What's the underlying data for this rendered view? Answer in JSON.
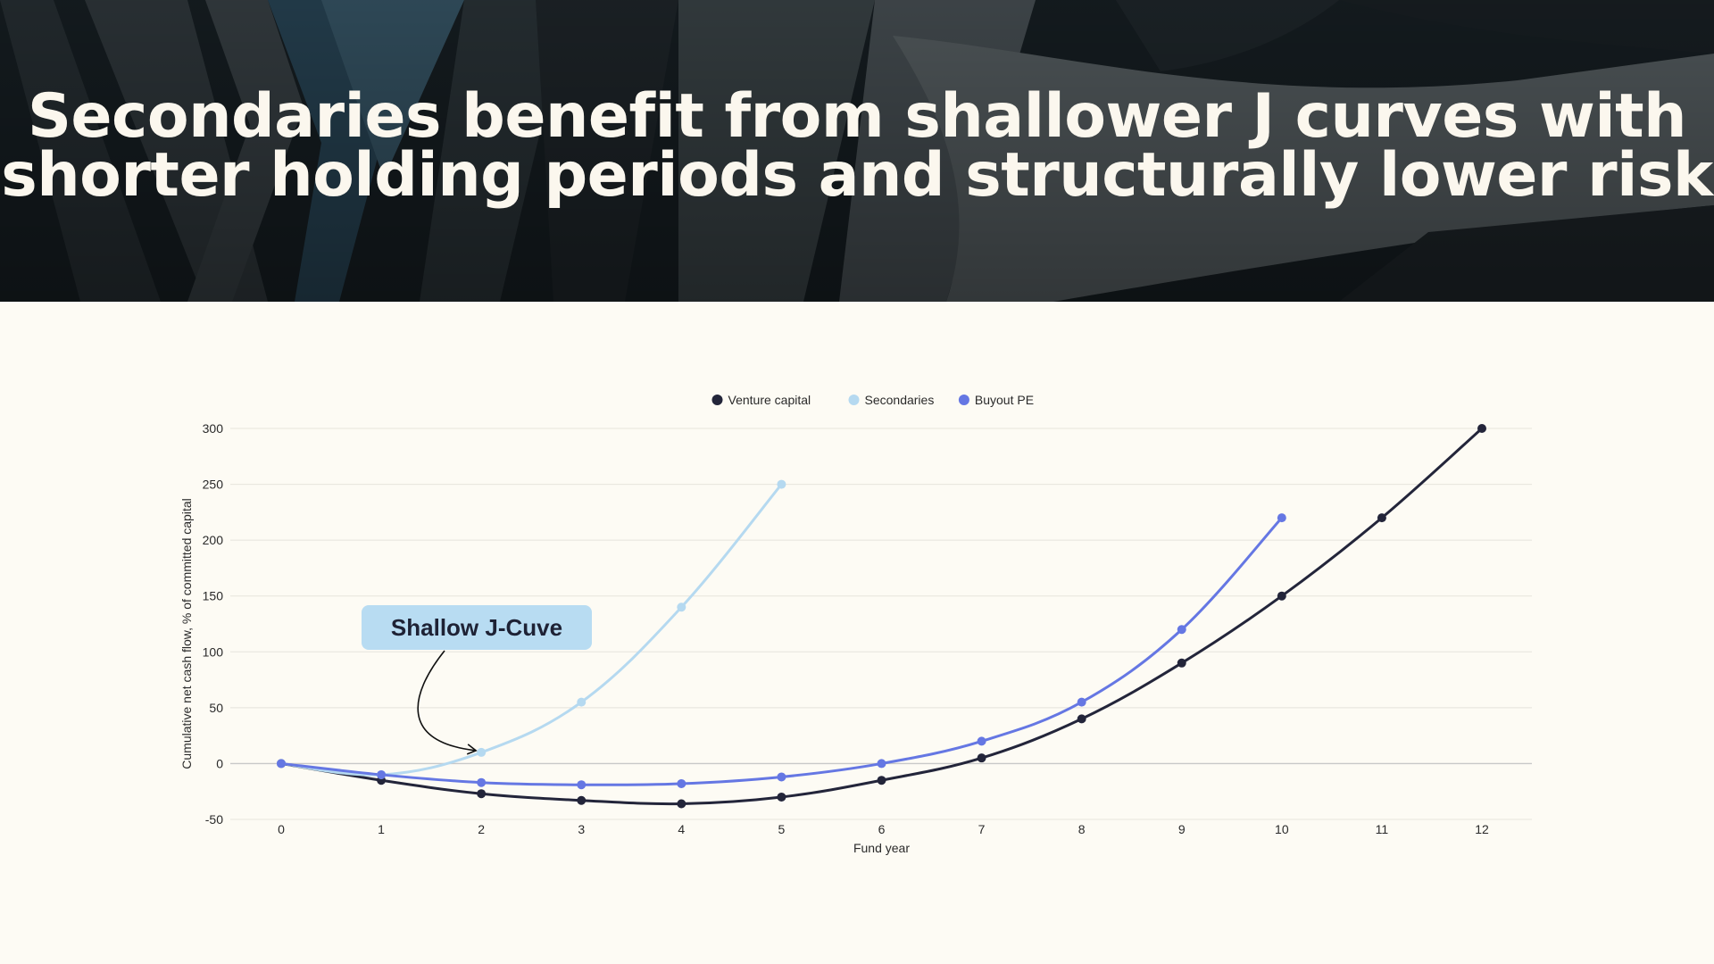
{
  "header": {
    "title_line1": "Secondaries benefit from shallower J curves with",
    "title_line2": "shorter holding periods and structurally lower risk"
  },
  "chart_data": {
    "type": "line",
    "xlabel": "Fund year",
    "ylabel": "Cumulative net cash flow, % of committed capital",
    "xlim": [
      0,
      12
    ],
    "ylim": [
      -50,
      300
    ],
    "x_ticks": [
      0,
      1,
      2,
      3,
      4,
      5,
      6,
      7,
      8,
      9,
      10,
      11,
      12
    ],
    "y_ticks": [
      -50,
      0,
      50,
      100,
      150,
      200,
      250,
      300
    ],
    "grid": true,
    "legend_position": "top-center",
    "series": [
      {
        "name": "Venture capital",
        "color": "#23253a",
        "x": [
          0,
          1,
          2,
          3,
          4,
          5,
          6,
          7,
          8,
          9,
          10,
          11,
          12
        ],
        "y": [
          0,
          -15,
          -27,
          -33,
          -36,
          -30,
          -15,
          5,
          40,
          90,
          150,
          220,
          300
        ]
      },
      {
        "name": "Secondaries",
        "color": "#b5d9f0",
        "x": [
          0,
          1,
          2,
          3,
          4,
          5
        ],
        "y": [
          0,
          -10,
          10,
          55,
          140,
          250
        ]
      },
      {
        "name": "Buyout PE",
        "color": "#6577e3",
        "x": [
          0,
          1,
          2,
          3,
          4,
          5,
          6,
          7,
          8,
          9,
          10
        ],
        "y": [
          0,
          -10,
          -17,
          -19,
          -18,
          -12,
          0,
          20,
          55,
          120,
          220
        ]
      }
    ],
    "annotations": [
      {
        "text": "Shallow J-Cuve",
        "target_series": "Secondaries",
        "target_x": 2,
        "target_y": 10
      }
    ]
  }
}
